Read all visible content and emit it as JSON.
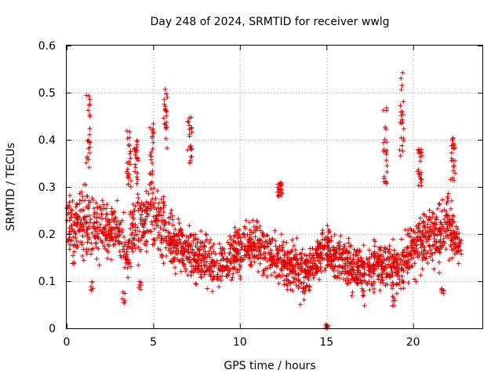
{
  "chart_data": {
    "type": "scatter",
    "title": "Day 248 of 2024, SRMTID for receiver wwlg",
    "xlabel": "GPS time / hours",
    "ylabel": "SRMTID / TECUs",
    "xlim": [
      0,
      24
    ],
    "ylim": [
      0,
      0.6
    ],
    "xticks": [
      0,
      5,
      10,
      15,
      20
    ],
    "xtick_labels": [
      "0",
      "5",
      "10",
      "15",
      "20"
    ],
    "yticks": [
      0,
      0.1,
      0.2,
      0.3,
      0.4,
      0.5,
      0.6
    ],
    "ytick_labels": [
      "0",
      "0.1",
      "0.2",
      "0.3",
      "0.4",
      "0.5",
      "0.6"
    ],
    "grid": true,
    "marker": "+",
    "color": "#e00000",
    "x_range_hours": [
      0,
      22.8
    ],
    "profile_hours": [
      0,
      0.5,
      1,
      2,
      3,
      3.5,
      4,
      5,
      5.7,
      7,
      8,
      9,
      10,
      11,
      12,
      13,
      14,
      15,
      16,
      17,
      18,
      19,
      20,
      21,
      22,
      22.8
    ],
    "profile_median": [
      0.23,
      0.2,
      0.22,
      0.22,
      0.2,
      0.16,
      0.22,
      0.24,
      0.2,
      0.16,
      0.14,
      0.13,
      0.17,
      0.18,
      0.15,
      0.13,
      0.12,
      0.17,
      0.14,
      0.12,
      0.14,
      0.13,
      0.17,
      0.2,
      0.22,
      0.17
    ],
    "profile_spread": [
      0.06,
      0.06,
      0.07,
      0.06,
      0.06,
      0.06,
      0.06,
      0.07,
      0.06,
      0.05,
      0.05,
      0.04,
      0.05,
      0.05,
      0.05,
      0.05,
      0.05,
      0.05,
      0.05,
      0.05,
      0.05,
      0.05,
      0.06,
      0.06,
      0.06,
      0.04
    ],
    "clusters": [
      {
        "x": 1.25,
        "ymin": 0.33,
        "ymax": 0.51
      },
      {
        "x": 3.6,
        "ymin": 0.3,
        "ymax": 0.42
      },
      {
        "x": 4.0,
        "ymin": 0.3,
        "ymax": 0.4
      },
      {
        "x": 4.9,
        "ymin": 0.3,
        "ymax": 0.44
      },
      {
        "x": 5.7,
        "ymin": 0.38,
        "ymax": 0.52
      },
      {
        "x": 7.1,
        "ymin": 0.35,
        "ymax": 0.45
      },
      {
        "x": 12.3,
        "ymin": 0.28,
        "ymax": 0.31
      },
      {
        "x": 18.4,
        "ymin": 0.3,
        "ymax": 0.47
      },
      {
        "x": 19.35,
        "ymin": 0.36,
        "ymax": 0.57
      },
      {
        "x": 20.4,
        "ymin": 0.3,
        "ymax": 0.38
      },
      {
        "x": 22.3,
        "ymin": 0.3,
        "ymax": 0.41
      }
    ],
    "lows": [
      {
        "x": 1.5,
        "ymin": 0.08,
        "ymax": 0.1
      },
      {
        "x": 3.3,
        "ymin": 0.05,
        "ymax": 0.09
      },
      {
        "x": 4.2,
        "ymin": 0.08,
        "ymax": 0.1
      },
      {
        "x": 13.7,
        "ymin": 0.06,
        "ymax": 0.09
      },
      {
        "x": 15.0,
        "ymin": 0.0,
        "ymax": 0.01
      },
      {
        "x": 18.9,
        "ymin": 0.04,
        "ymax": 0.07
      },
      {
        "x": 21.7,
        "ymin": 0.07,
        "ymax": 0.09
      }
    ]
  }
}
